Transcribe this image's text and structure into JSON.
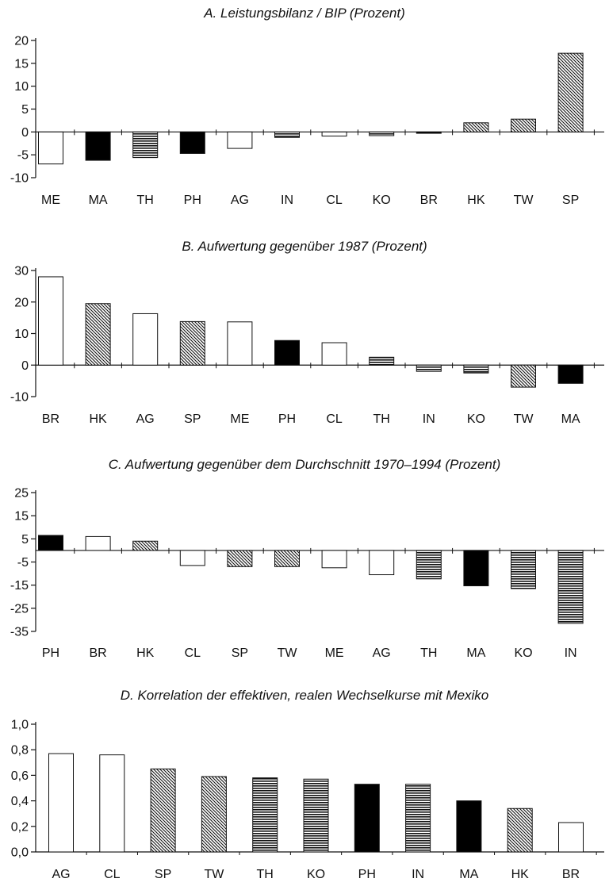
{
  "chart_data": [
    {
      "type": "bar",
      "title": "A.  Leistungsbilanz / BIP (Prozent)",
      "categories": [
        "ME",
        "MA",
        "TH",
        "PH",
        "AG",
        "IN",
        "CL",
        "KO",
        "BR",
        "HK",
        "TW",
        "SP"
      ],
      "values": [
        -7,
        -6.2,
        -5.6,
        -4.7,
        -3.6,
        -1.2,
        -0.9,
        -0.8,
        -0.3,
        2.0,
        2.8,
        17.2
      ],
      "patterns": [
        "white",
        "black",
        "hstripe",
        "black",
        "white",
        "hstripe",
        "white",
        "hstripe",
        "black",
        "diag",
        "diag",
        "diag"
      ],
      "ylim": [
        -10,
        20
      ],
      "yticks": [
        20,
        15,
        10,
        5,
        0,
        -5,
        -10
      ],
      "ytick_labels": [
        "20",
        "15",
        "10",
        "5",
        "0",
        "-5",
        "-10"
      ],
      "xlabel": "",
      "ylabel": "",
      "grid": false
    },
    {
      "type": "bar",
      "title": "B.  Aufwertung gegenüber 1987 (Prozent)",
      "categories": [
        "BR",
        "HK",
        "AG",
        "SP",
        "ME",
        "PH",
        "CL",
        "TH",
        "IN",
        "KO",
        "TW",
        "MA"
      ],
      "values": [
        28,
        19.5,
        16.3,
        13.8,
        13.7,
        7.8,
        7.1,
        2.5,
        -2.0,
        -2.5,
        -7.0,
        -5.8
      ],
      "patterns": [
        "white",
        "diag",
        "white",
        "diag",
        "white",
        "black",
        "white",
        "hstripe",
        "hstripe",
        "hstripe",
        "diag",
        "black"
      ],
      "ylim": [
        -10,
        30
      ],
      "yticks": [
        30,
        20,
        10,
        0,
        -10
      ],
      "ytick_labels": [
        "30",
        "20",
        "10",
        "0",
        "-10"
      ],
      "xlabel": "",
      "ylabel": "",
      "grid": false
    },
    {
      "type": "bar",
      "title": "C.  Aufwertung gegenüber dem Durchschnitt 1970–1994 (Prozent)",
      "categories": [
        "PH",
        "BR",
        "HK",
        "CL",
        "SP",
        "TW",
        "ME",
        "AG",
        "TH",
        "MA",
        "KO",
        "IN"
      ],
      "values": [
        6.5,
        6.0,
        4.0,
        -6.5,
        -7.0,
        -7.0,
        -7.5,
        -10.5,
        -12.3,
        -15.3,
        -16.5,
        -31.5
      ],
      "patterns": [
        "black",
        "white",
        "diag",
        "white",
        "diag",
        "diag",
        "white",
        "white",
        "hstripe",
        "black",
        "hstripe",
        "hstripe"
      ],
      "ylim": [
        -35,
        25
      ],
      "yticks": [
        25,
        15,
        5,
        -5,
        -15,
        -25,
        -35
      ],
      "ytick_labels": [
        "25",
        "15",
        "5",
        "-5",
        "-15",
        "-25",
        "-35"
      ],
      "xlabel": "",
      "ylabel": "",
      "grid": false
    },
    {
      "type": "bar",
      "title": "D.  Korrelation der effektiven, realen Wechselkurse mit Mexiko",
      "categories": [
        "AG",
        "CL",
        "SP",
        "TW",
        "TH",
        "KO",
        "PH",
        "IN",
        "MA",
        "HK",
        "BR"
      ],
      "values": [
        0.77,
        0.76,
        0.65,
        0.59,
        0.58,
        0.57,
        0.53,
        0.53,
        0.4,
        0.34,
        0.23
      ],
      "patterns": [
        "white",
        "white",
        "diag",
        "diag",
        "hstripe",
        "hstripe",
        "black",
        "hstripe",
        "black",
        "diag",
        "white"
      ],
      "ylim": [
        0,
        1
      ],
      "yticks": [
        1.0,
        0.8,
        0.6,
        0.4,
        0.2,
        0.0
      ],
      "ytick_labels": [
        "1,0",
        "0,8",
        "0,6",
        "0,4",
        "0,2",
        "0,0"
      ],
      "xlabel": "",
      "ylabel": "",
      "grid": false
    }
  ]
}
